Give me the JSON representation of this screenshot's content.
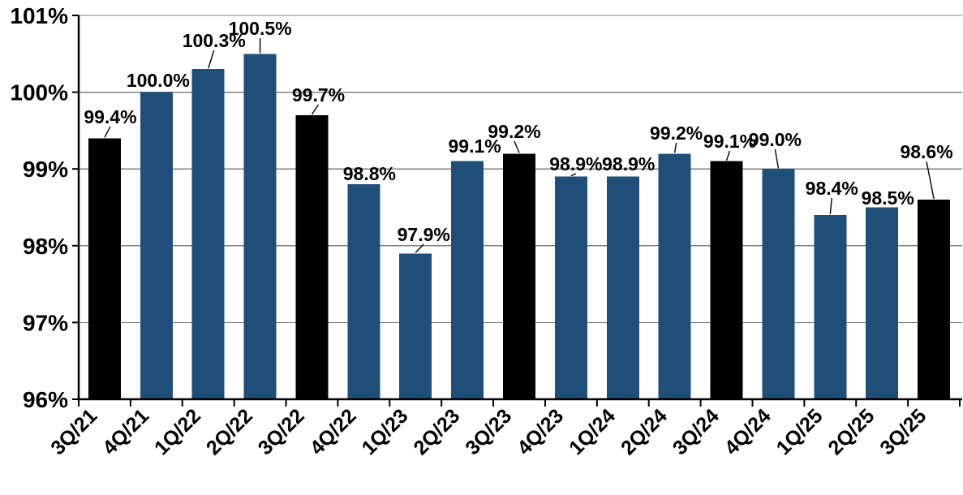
{
  "chart_data": {
    "type": "bar",
    "title": "",
    "xlabel": "",
    "ylabel": "",
    "categories": [
      "3Q/21",
      "4Q/21",
      "1Q/22",
      "2Q/22",
      "3Q/22",
      "4Q/22",
      "1Q/23",
      "2Q/23",
      "3Q/23",
      "4Q/23",
      "1Q/24",
      "2Q/24",
      "3Q/24",
      "4Q/24",
      "1Q/25",
      "2Q/25",
      "3Q/25"
    ],
    "values": [
      99.4,
      100.0,
      100.3,
      100.5,
      99.7,
      98.8,
      97.9,
      99.1,
      99.2,
      98.9,
      98.9,
      99.2,
      99.1,
      99.0,
      98.4,
      98.5,
      98.6
    ],
    "value_labels": [
      "99.4%",
      "100.0%",
      "100.3%",
      "100.5%",
      "99.7%",
      "98.8%",
      "97.9%",
      "99.1%",
      "99.2%",
      "98.9%",
      "98.9%",
      "99.2%",
      "99.1%",
      "99.0%",
      "98.4%",
      "98.5%",
      "98.6%"
    ],
    "bar_color_keys": [
      "black",
      "blue",
      "blue",
      "blue",
      "black",
      "blue",
      "blue",
      "blue",
      "black",
      "blue",
      "blue",
      "blue",
      "black",
      "blue",
      "blue",
      "blue",
      "black"
    ],
    "y_tick_labels": [
      "101%",
      "100%",
      "99%",
      "98%",
      "97%",
      "96%"
    ],
    "y_tick_values": [
      101,
      100,
      99,
      98,
      97,
      96
    ],
    "ylim": [
      96,
      101
    ],
    "grid": true,
    "legend": "none",
    "colors": {
      "blue": "#1F4E79",
      "black": "#000000",
      "gridline": "#808080",
      "axis": "#000000",
      "label_text": "#000000",
      "background": "#FFFFFF"
    }
  }
}
